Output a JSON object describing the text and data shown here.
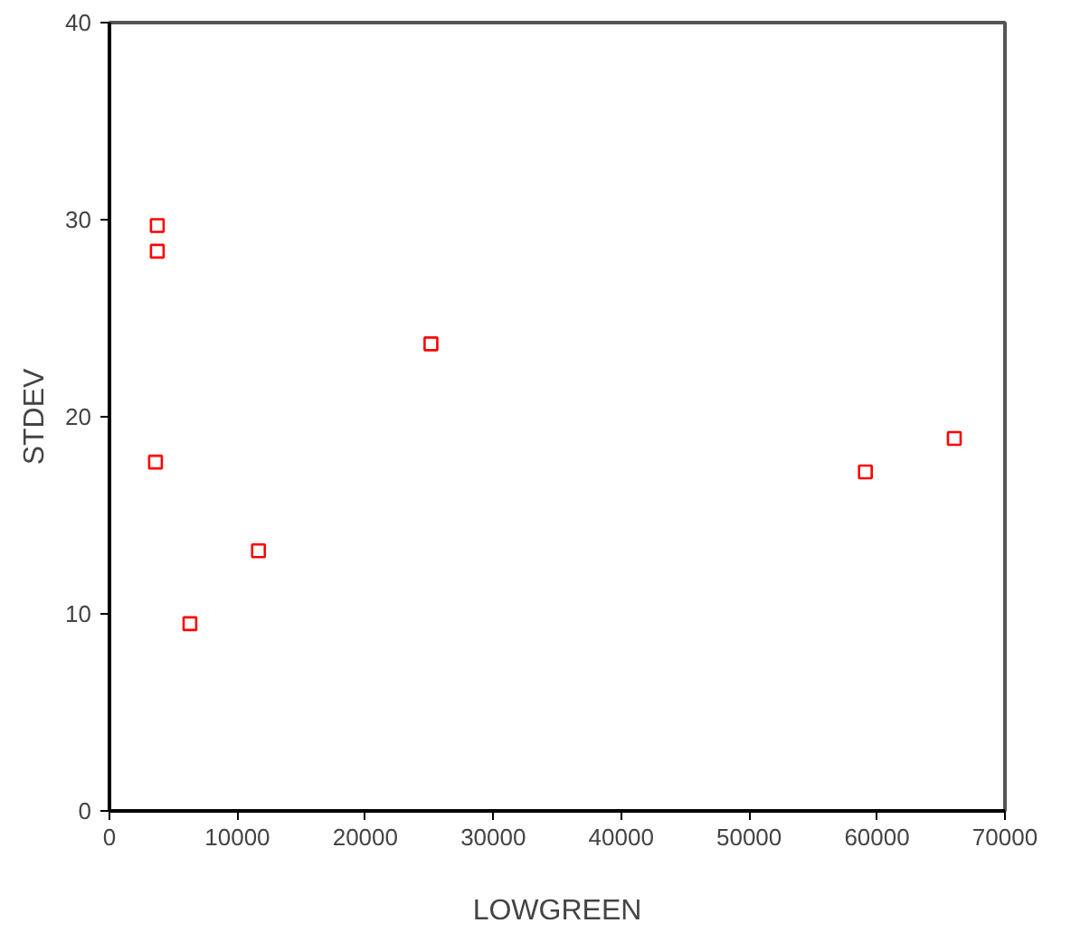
{
  "chart_data": {
    "type": "scatter",
    "xlabel": "LOWGREEN",
    "ylabel": "STDEV",
    "x": [
      3740,
      3740,
      3600,
      6290,
      11650,
      25130,
      59090,
      66040
    ],
    "series": [
      {
        "color": "#ff0000",
        "values": [
          29.7,
          28.4,
          17.7,
          9.5,
          13.2,
          23.7,
          17.2,
          18.9
        ]
      }
    ],
    "xlim": [
      0,
      70000
    ],
    "ylim": [
      0,
      40
    ],
    "xticks": [
      0,
      10000,
      20000,
      30000,
      40000,
      50000,
      60000,
      70000
    ],
    "yticks": [
      0,
      10,
      20,
      30,
      40
    ],
    "grid": false,
    "marker": "square"
  }
}
